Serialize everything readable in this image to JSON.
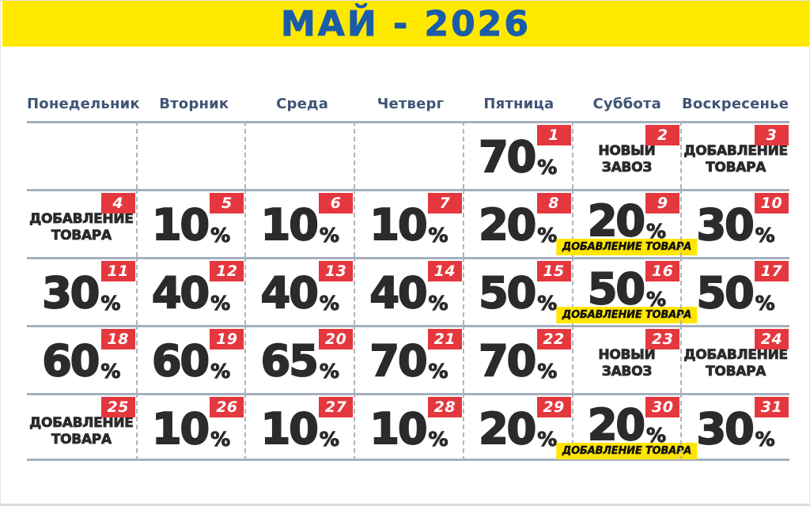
{
  "header": {
    "title": "МАЙ - 2026"
  },
  "weekdays": [
    "Понедельник",
    "Вторник",
    "Среда",
    "Четверг",
    "Пятница",
    "Суббота",
    "Воскресенье"
  ],
  "colors": {
    "banner": "#FFE800",
    "title": "#1B5CA8",
    "weekday": "#3F5575",
    "badge": "#E4383E",
    "tag": "#FFE500",
    "ink": "#2B2B2B",
    "line": "#A6AFBE",
    "dash": "#ADB4C0"
  },
  "tag_label": "ДОБАВЛЕНИЕ ТОВАРА",
  "weeks": [
    [
      {
        "type": "empty"
      },
      {
        "type": "empty"
      },
      {
        "type": "empty"
      },
      {
        "type": "empty"
      },
      {
        "day": "1",
        "type": "percent",
        "value": "70",
        "unit": "%"
      },
      {
        "day": "2",
        "type": "text",
        "lines": [
          "НОВЫЙ",
          "ЗАВОЗ"
        ]
      },
      {
        "day": "3",
        "type": "text",
        "lines": [
          "ДОБАВЛЕНИЕ",
          "ТОВАРА"
        ]
      }
    ],
    [
      {
        "day": "4",
        "type": "text",
        "lines": [
          "ДОБАВЛЕНИЕ",
          "ТОВАРА"
        ]
      },
      {
        "day": "5",
        "type": "percent",
        "value": "10",
        "unit": "%"
      },
      {
        "day": "6",
        "type": "percent",
        "value": "10",
        "unit": "%"
      },
      {
        "day": "7",
        "type": "percent",
        "value": "10",
        "unit": "%"
      },
      {
        "day": "8",
        "type": "percent",
        "value": "20",
        "unit": "%"
      },
      {
        "day": "9",
        "type": "percent",
        "value": "20",
        "unit": "%",
        "tag": "ДОБАВЛЕНИЕ ТОВАРА"
      },
      {
        "day": "10",
        "type": "percent",
        "value": "30",
        "unit": "%"
      }
    ],
    [
      {
        "day": "11",
        "type": "percent",
        "value": "30",
        "unit": "%"
      },
      {
        "day": "12",
        "type": "percent",
        "value": "40",
        "unit": "%"
      },
      {
        "day": "13",
        "type": "percent",
        "value": "40",
        "unit": "%"
      },
      {
        "day": "14",
        "type": "percent",
        "value": "40",
        "unit": "%"
      },
      {
        "day": "15",
        "type": "percent",
        "value": "50",
        "unit": "%"
      },
      {
        "day": "16",
        "type": "percent",
        "value": "50",
        "unit": "%",
        "tag": "ДОБАВЛЕНИЕ ТОВАРА"
      },
      {
        "day": "17",
        "type": "percent",
        "value": "50",
        "unit": "%"
      }
    ],
    [
      {
        "day": "18",
        "type": "percent",
        "value": "60",
        "unit": "%"
      },
      {
        "day": "19",
        "type": "percent",
        "value": "60",
        "unit": "%"
      },
      {
        "day": "20",
        "type": "percent",
        "value": "65",
        "unit": "%"
      },
      {
        "day": "21",
        "type": "percent",
        "value": "70",
        "unit": "%"
      },
      {
        "day": "22",
        "type": "percent",
        "value": "70",
        "unit": "%"
      },
      {
        "day": "23",
        "type": "text",
        "lines": [
          "НОВЫЙ",
          "ЗАВОЗ"
        ]
      },
      {
        "day": "24",
        "type": "text",
        "lines": [
          "ДОБАВЛЕНИЕ",
          "ТОВАРА"
        ]
      }
    ],
    [
      {
        "day": "25",
        "type": "text",
        "lines": [
          "ДОБАВЛЕНИЕ",
          "ТОВАРА"
        ]
      },
      {
        "day": "26",
        "type": "percent",
        "value": "10",
        "unit": "%"
      },
      {
        "day": "27",
        "type": "percent",
        "value": "10",
        "unit": "%"
      },
      {
        "day": "28",
        "type": "percent",
        "value": "10",
        "unit": "%"
      },
      {
        "day": "29",
        "type": "percent",
        "value": "20",
        "unit": "%"
      },
      {
        "day": "30",
        "type": "percent",
        "value": "20",
        "unit": "%",
        "tag": "ДОБАВЛЕНИЕ ТОВАРА"
      },
      {
        "day": "31",
        "type": "percent",
        "value": "30",
        "unit": "%"
      }
    ]
  ]
}
